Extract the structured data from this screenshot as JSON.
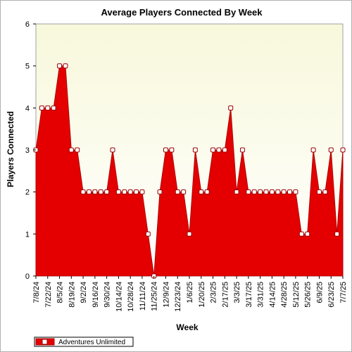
{
  "chart_data": {
    "type": "area",
    "title": "Average Players Connected By Week",
    "xlabel": "Week",
    "ylabel": "Players Connected",
    "ylim": [
      0,
      6
    ],
    "yticks": [
      "0",
      "1",
      "2",
      "3",
      "4",
      "5",
      "6"
    ],
    "grid": false,
    "legend_position": "bottom-left",
    "colors": {
      "plot_background_top": "#f8f8dc",
      "plot_background_bottom": "#ffffff",
      "fill": "#e40000",
      "line": "#b00000",
      "marker_fill": "#ffffff",
      "marker_stroke": "#990000"
    },
    "xtick_labels": [
      "7/8/24",
      "7/22/24",
      "8/5/24",
      "8/19/24",
      "9/2/24",
      "9/16/24",
      "9/30/24",
      "10/14/24",
      "10/28/24",
      "11/11/24",
      "11/25/24",
      "12/9/24",
      "12/23/24",
      "1/6/25",
      "1/20/25",
      "2/3/25",
      "2/17/25",
      "3/3/25",
      "3/17/25",
      "3/31/25",
      "4/14/25",
      "4/28/25",
      "5/12/25",
      "5/26/25",
      "6/9/25",
      "6/23/25",
      "7/7/25"
    ],
    "series": [
      {
        "name": "Adventures Unlimited",
        "values": [
          3,
          4,
          4,
          4,
          5,
          5,
          3,
          3,
          2,
          2,
          2,
          2,
          2,
          3,
          2,
          2,
          2,
          2,
          2,
          1,
          0,
          2,
          3,
          3,
          2,
          2,
          1,
          3,
          2,
          2,
          3,
          3,
          3,
          4,
          2,
          3,
          2,
          2,
          2,
          2,
          2,
          2,
          2,
          2,
          2,
          1,
          1,
          3,
          2,
          2,
          3,
          1,
          3
        ]
      }
    ]
  }
}
